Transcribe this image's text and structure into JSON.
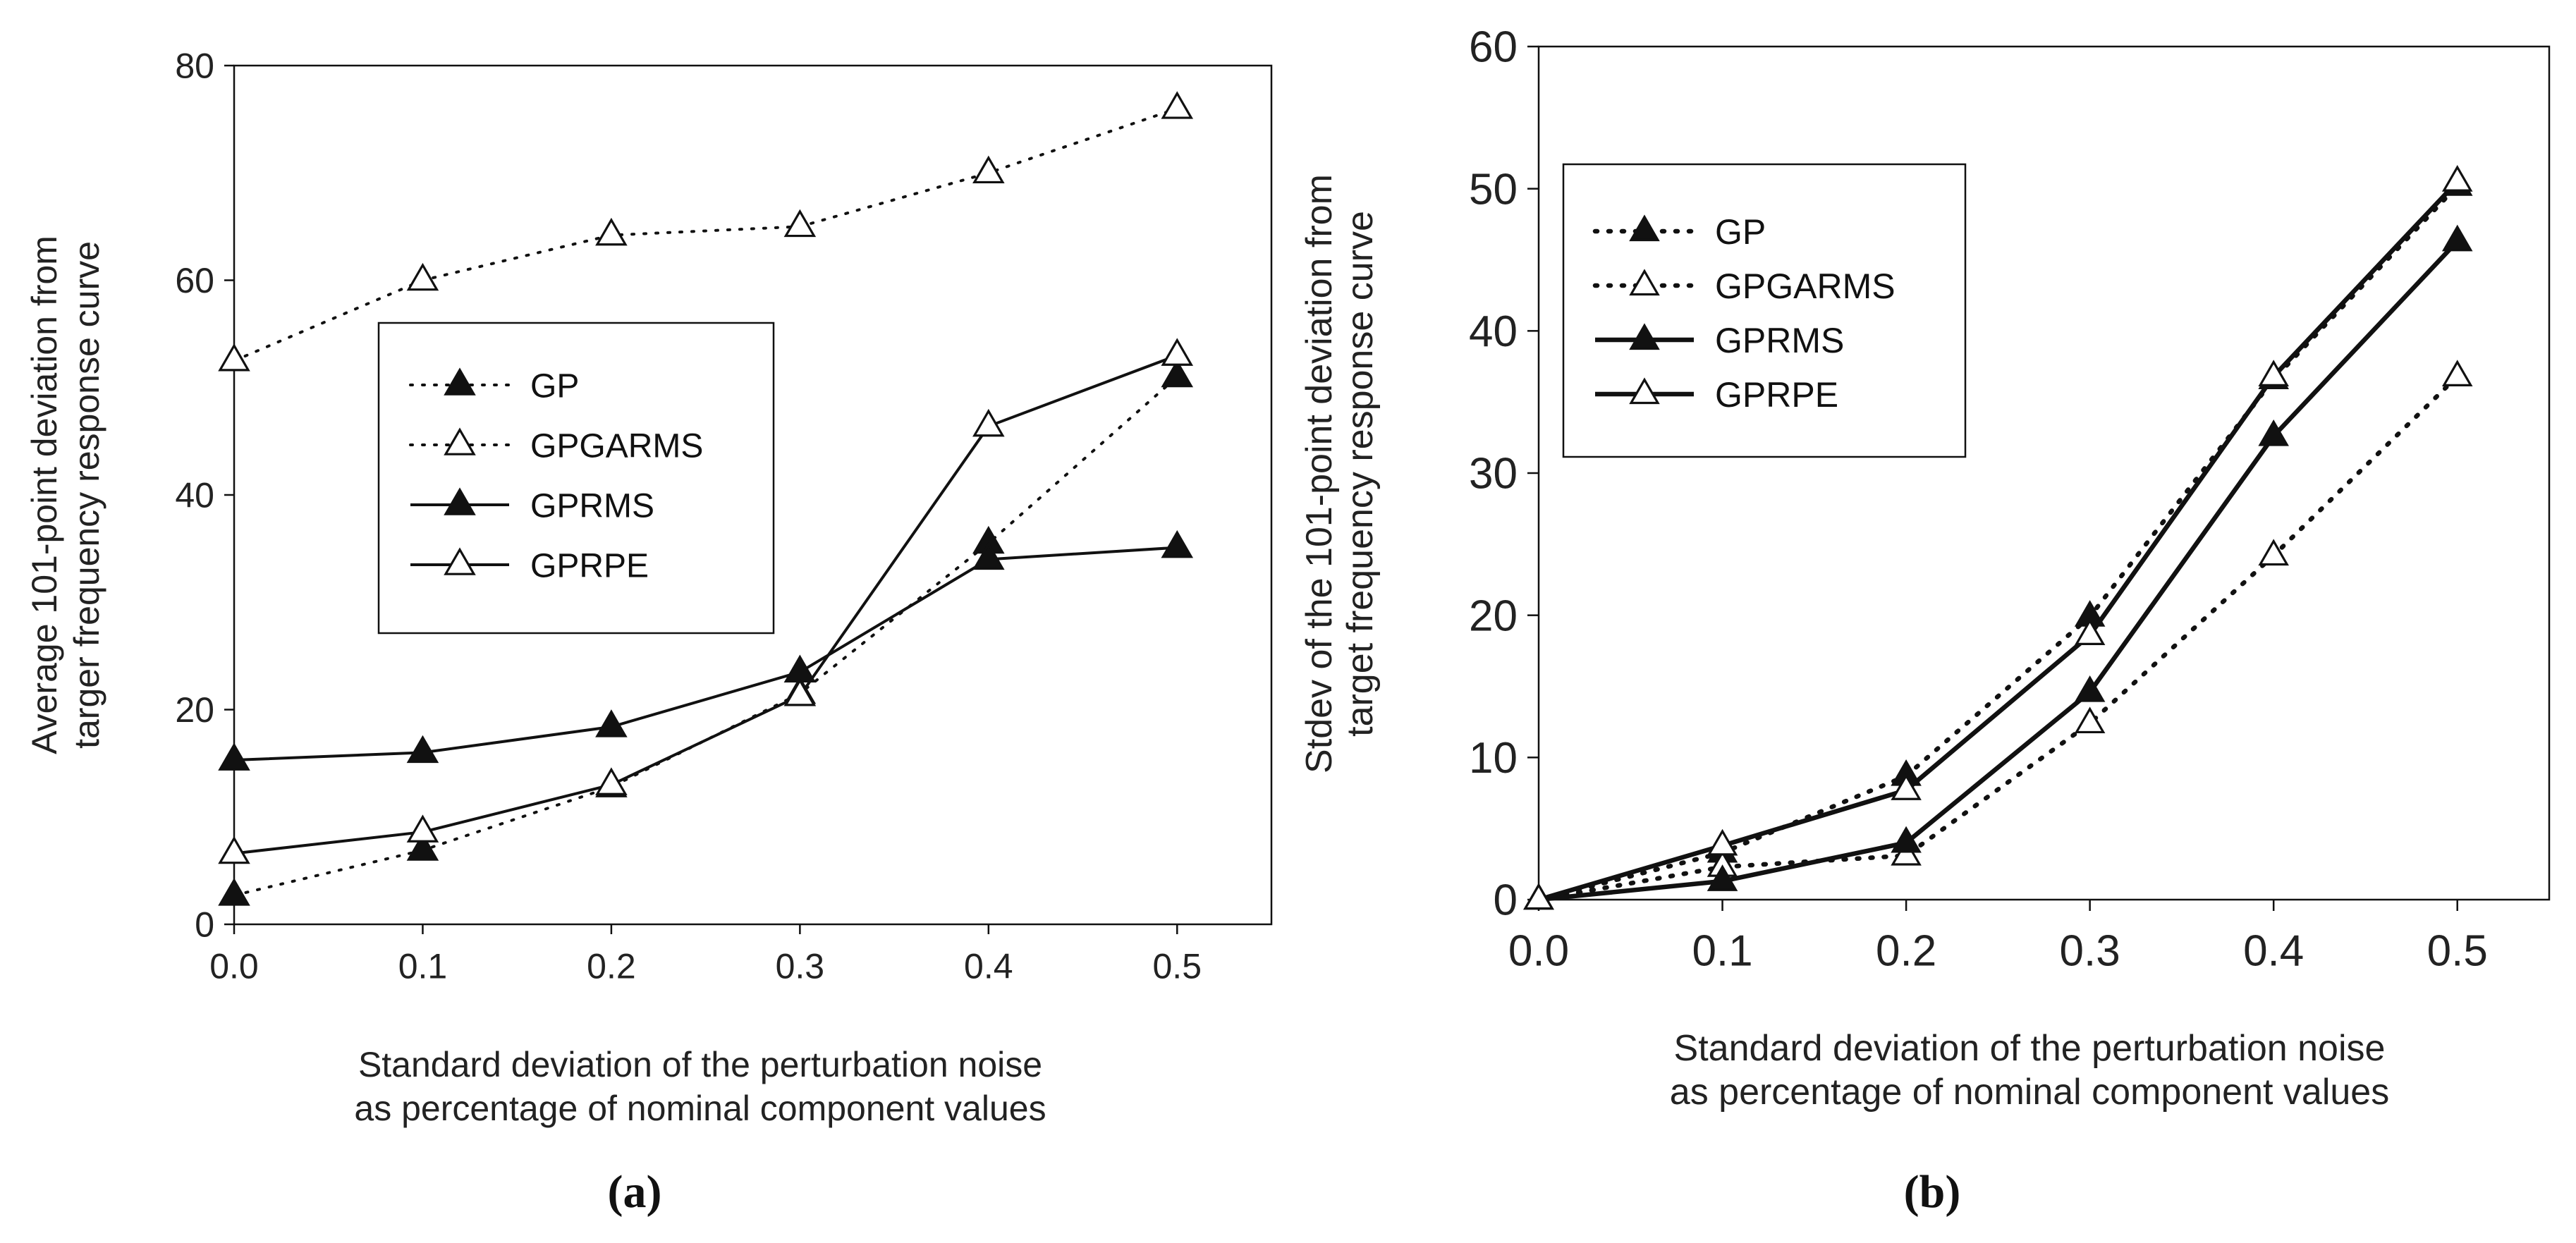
{
  "chart_data": [
    {
      "type": "line",
      "panel": "a",
      "caption": "(a)",
      "xlabel": [
        "Standard deviation of the perturbation noise",
        "as percentage of nominal component values"
      ],
      "ylabel": [
        "Average 101-point deviation from",
        "targer frequency response curve"
      ],
      "x": [
        0.0,
        0.1,
        0.2,
        0.3,
        0.4,
        0.5
      ],
      "x_tick_labels": [
        "0.0",
        "0.1",
        "0.2",
        "0.3",
        "0.4",
        "0.5"
      ],
      "xlim": [
        0.0,
        0.55
      ],
      "ylim": [
        0,
        80
      ],
      "y_ticks": [
        0,
        20,
        40,
        60,
        80
      ],
      "y_tick_labels": [
        "0",
        "20",
        "40",
        "60",
        "80"
      ],
      "grid": false,
      "legend_position": "center",
      "series": [
        {
          "name": "GP",
          "values": [
            2.7,
            6.9,
            12.8,
            21.5,
            35.5,
            51.0
          ],
          "line": "dotted",
          "marker": "filled-triangle"
        },
        {
          "name": "GPGARMS",
          "values": [
            52.5,
            60.0,
            64.2,
            65.0,
            70.0,
            76.0
          ],
          "line": "dotted",
          "marker": "open-triangle"
        },
        {
          "name": "GPRMS",
          "values": [
            15.3,
            16.0,
            18.4,
            23.5,
            34.0,
            35.1
          ],
          "line": "solid",
          "marker": "filled-triangle"
        },
        {
          "name": "GPRPE",
          "values": [
            6.6,
            8.6,
            13.0,
            21.3,
            46.4,
            53.0
          ],
          "line": "solid",
          "marker": "open-triangle"
        }
      ]
    },
    {
      "type": "line",
      "panel": "b",
      "caption": "(b)",
      "xlabel": [
        "Standard deviation of the perturbation noise",
        "as percentage of nominal component values"
      ],
      "ylabel": [
        "Stdev of the 101-point deviation from",
        "target frequency response curve"
      ],
      "x": [
        0.0,
        0.1,
        0.2,
        0.3,
        0.4,
        0.5
      ],
      "x_tick_labels": [
        "0.0",
        "0.1",
        "0.2",
        "0.3",
        "0.4",
        "0.5"
      ],
      "xlim": [
        0.0,
        0.55
      ],
      "ylim": [
        0,
        60
      ],
      "y_ticks": [
        0,
        10,
        20,
        30,
        40,
        50,
        60
      ],
      "y_tick_labels": [
        "0",
        "10",
        "20",
        "30",
        "40",
        "50",
        "60"
      ],
      "grid": false,
      "legend_position": "top-left",
      "series": [
        {
          "name": "GP",
          "values": [
            0.0,
            3.3,
            8.7,
            19.9,
            36.6,
            50.2
          ],
          "line": "dotted-bold",
          "marker": "filled-triangle"
        },
        {
          "name": "GPGARMS",
          "values": [
            0.0,
            2.3,
            3.1,
            12.4,
            24.2,
            36.8
          ],
          "line": "dotted-bold",
          "marker": "open-triangle"
        },
        {
          "name": "GPRMS",
          "values": [
            0.0,
            1.3,
            4.0,
            14.6,
            32.6,
            46.3
          ],
          "line": "solid-bold",
          "marker": "filled-triangle"
        },
        {
          "name": "GPRPE",
          "values": [
            0.0,
            3.8,
            7.7,
            18.6,
            36.8,
            50.5
          ],
          "line": "solid-bold",
          "marker": "open-triangle"
        }
      ]
    }
  ]
}
